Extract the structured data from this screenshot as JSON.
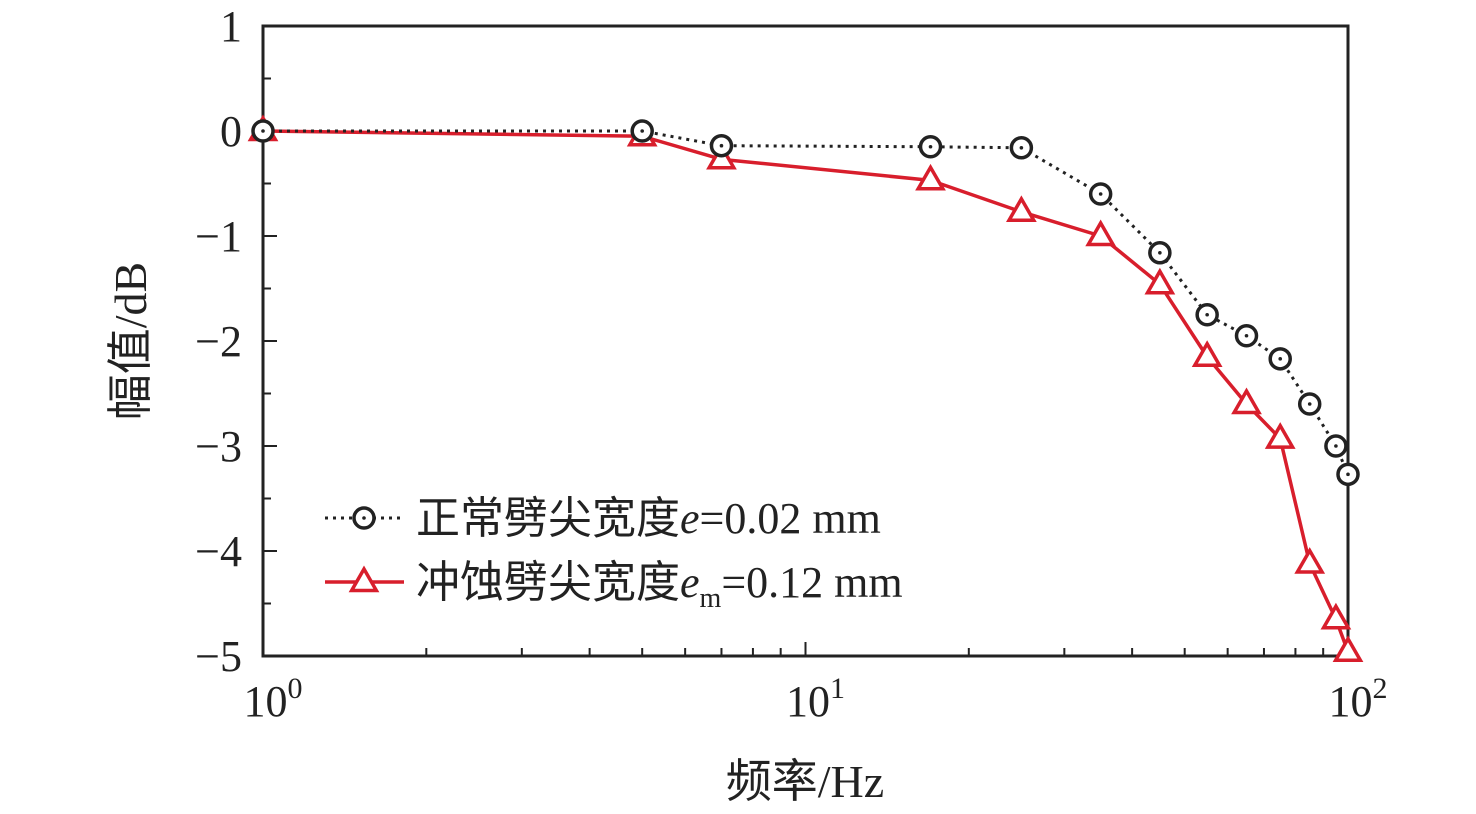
{
  "chart_data": {
    "type": "line",
    "xscale": "log",
    "xlim": [
      1,
      100
    ],
    "ylim": [
      -5,
      1
    ],
    "xlabel": "频率/Hz",
    "ylabel": "幅值/dB",
    "x_ticks": [
      {
        "value": 1,
        "base": "10",
        "exp": "0"
      },
      {
        "value": 10,
        "base": "10",
        "exp": "1"
      },
      {
        "value": 100,
        "base": "10",
        "exp": "2"
      }
    ],
    "y_ticks": [
      {
        "value": 1,
        "label": "1"
      },
      {
        "value": 0,
        "label": "0"
      },
      {
        "value": -1,
        "label": "−1"
      },
      {
        "value": -2,
        "label": "−2"
      },
      {
        "value": -3,
        "label": "−3"
      },
      {
        "value": -4,
        "label": "−4"
      },
      {
        "value": -5,
        "label": "−5"
      }
    ],
    "grid": false,
    "legend_position": "bottom-left",
    "series": [
      {
        "name": "正常劈尖宽度e=0.02 mm",
        "legend_main": "正常劈尖宽度",
        "legend_var": "e",
        "legend_sub": "",
        "legend_value": "=0.02 mm",
        "color": "#222222",
        "marker": "circle",
        "line_style": "dotted",
        "x": [
          1,
          5,
          7,
          17,
          25,
          35,
          45,
          55,
          65,
          75,
          85,
          95,
          100
        ],
        "y": [
          0,
          0,
          -0.14,
          -0.15,
          -0.16,
          -0.6,
          -1.16,
          -1.75,
          -1.95,
          -2.17,
          -2.6,
          -3.0,
          -3.27
        ]
      },
      {
        "name": "冲蚀劈尖宽度em=0.12 mm",
        "legend_main": "冲蚀劈尖宽度",
        "legend_var": "e",
        "legend_sub": "m",
        "legend_value": "=0.12 mm",
        "color": "#d81e2c",
        "marker": "triangle",
        "line_style": "solid",
        "x": [
          1,
          5,
          7,
          17,
          25,
          35,
          45,
          55,
          65,
          75,
          85,
          95,
          100
        ],
        "y": [
          0,
          -0.05,
          -0.27,
          -0.47,
          -0.77,
          -1.0,
          -1.46,
          -2.15,
          -2.6,
          -2.93,
          -4.12,
          -4.65,
          -4.96
        ]
      }
    ]
  }
}
